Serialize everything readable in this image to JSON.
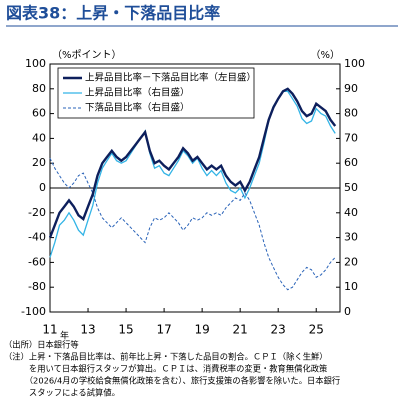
{
  "chart_data": {
    "type": "line",
    "title": "図表38：上昇・下落品目比率",
    "y_label": "（%ポイント）",
    "y2_label": "（%）",
    "x_unit": "年",
    "x": [
      11,
      11.25,
      11.5,
      11.75,
      12,
      12.25,
      12.5,
      12.75,
      13,
      13.25,
      13.5,
      13.75,
      14,
      14.25,
      14.5,
      14.75,
      15,
      15.25,
      15.5,
      15.75,
      16,
      16.25,
      16.5,
      16.75,
      17,
      17.25,
      17.5,
      17.75,
      18,
      18.25,
      18.5,
      18.75,
      19,
      19.25,
      19.5,
      19.75,
      20,
      20.25,
      20.5,
      20.75,
      21,
      21.25,
      21.5,
      21.75,
      22,
      22.25,
      22.5,
      22.75,
      23,
      23.25,
      23.5,
      23.75,
      24,
      24.25,
      24.5,
      24.75,
      25,
      25.25,
      25.5,
      25.75,
      26
    ],
    "xlim": [
      11,
      26.25
    ],
    "xticks": [
      11,
      13,
      15,
      17,
      19,
      21,
      23,
      25
    ],
    "ylim": [
      -100,
      100
    ],
    "yticks": [
      -100,
      -80,
      -60,
      -40,
      -20,
      0,
      20,
      40,
      60,
      80,
      100
    ],
    "y2lim": [
      0,
      100
    ],
    "y2ticks": [
      0,
      10,
      20,
      30,
      40,
      50,
      60,
      70,
      80,
      90,
      100
    ],
    "legend": "upper left",
    "series": [
      {
        "name": "上昇品目比率－下落品目比率（左目盛）",
        "color": "#0d1f5c",
        "width": 2.4,
        "dash": false,
        "values": [
          -40,
          -30,
          -20,
          -15,
          -10,
          -15,
          -22,
          -25,
          -15,
          -5,
          10,
          20,
          25,
          30,
          25,
          22,
          25,
          30,
          35,
          40,
          45,
          30,
          20,
          22,
          18,
          15,
          20,
          25,
          32,
          28,
          22,
          25,
          20,
          15,
          18,
          15,
          18,
          10,
          5,
          2,
          5,
          -2,
          5,
          15,
          25,
          40,
          55,
          65,
          72,
          78,
          80,
          76,
          70,
          62,
          58,
          60,
          68,
          65,
          62,
          55,
          50
        ]
      },
      {
        "name": "上昇品目比率（右目盛）",
        "color": "#33b4e6",
        "width": 1.3,
        "dash": false,
        "axis": "y2",
        "values": [
          22,
          28,
          35,
          37,
          40,
          37,
          33,
          31,
          37,
          43,
          52,
          58,
          61,
          64,
          61,
          60,
          61,
          64,
          67,
          70,
          73,
          64,
          58,
          59,
          56,
          55,
          58,
          61,
          65,
          63,
          60,
          62,
          58,
          55,
          57,
          55,
          57,
          52,
          49,
          48,
          50,
          46,
          50,
          55,
          60,
          68,
          77,
          83,
          86,
          89,
          89,
          86,
          83,
          78,
          76,
          77,
          82,
          80,
          79,
          75,
          72
        ]
      },
      {
        "name": "下落品目比率（右目盛）",
        "color": "#2a63b8",
        "width": 1,
        "dash": true,
        "axis": "y2",
        "values": [
          62,
          58,
          55,
          52,
          50,
          52,
          55,
          56,
          52,
          48,
          42,
          38,
          36,
          34,
          36,
          38,
          36,
          34,
          32,
          30,
          28,
          34,
          38,
          37,
          38,
          40,
          38,
          36,
          33,
          35,
          38,
          37,
          38,
          40,
          39,
          40,
          39,
          42,
          44,
          46,
          45,
          48,
          45,
          40,
          35,
          28,
          22,
          18,
          14,
          11,
          9,
          10,
          13,
          16,
          18,
          17,
          14,
          15,
          17,
          20,
          22
        ]
      }
    ],
    "notes": [
      "（出所）日本銀行等",
      "（注）上昇・下落品目比率は、前年比上昇・下落した品目の割合。ＣＰＩ（除く生鮮）",
      "　　　を用いて日本銀行スタッフが算出。ＣＰＩは、消費税率の変更・教育無償化政策",
      "　　　（2026/4月の学校給食無償化政策を含む）、旅行支援策の各影響を除いた。日本銀行",
      "　　　スタッフによる試算値。"
    ]
  }
}
